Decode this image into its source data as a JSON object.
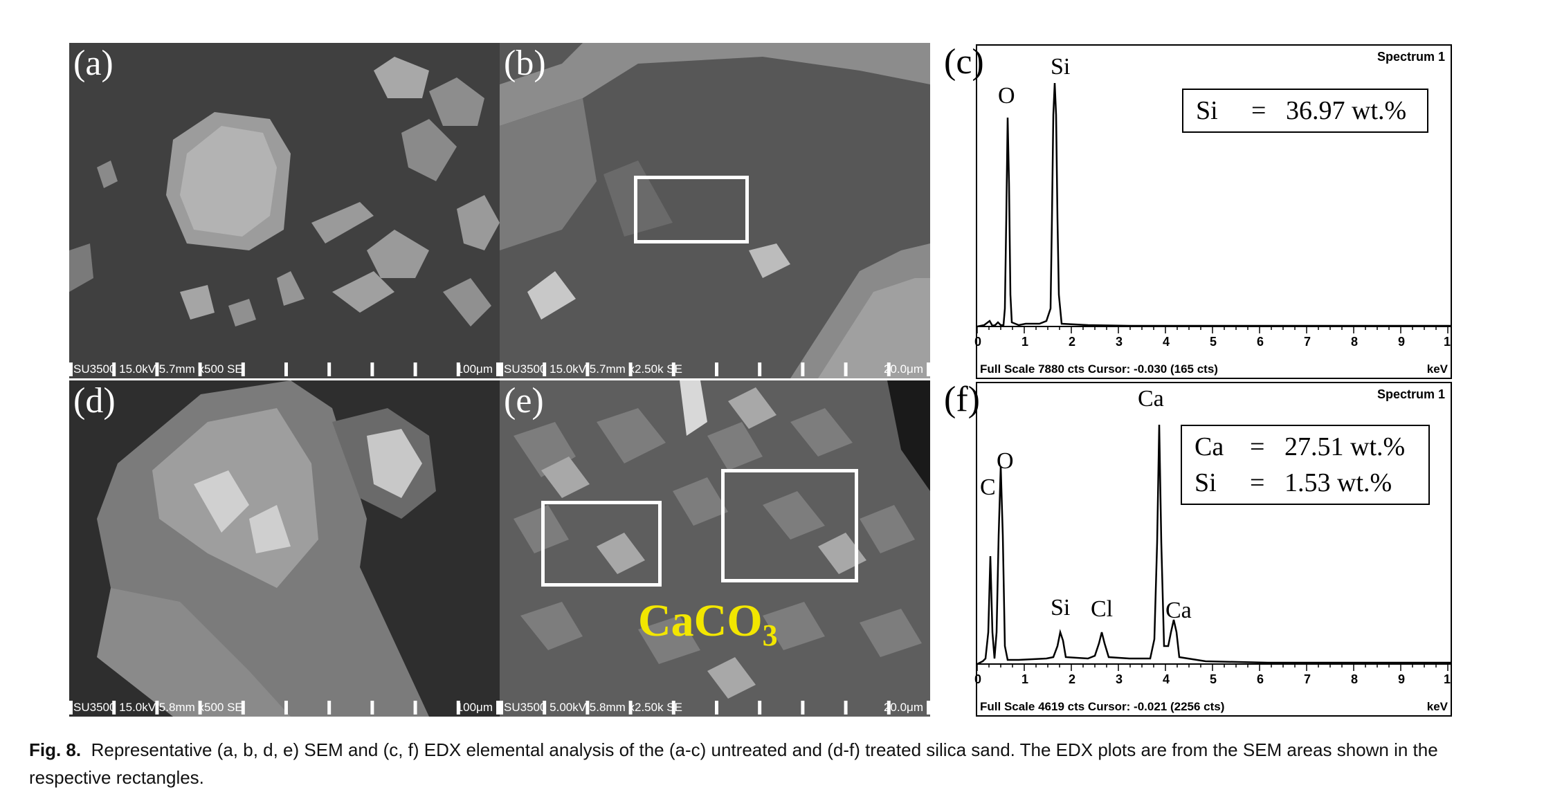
{
  "panels": {
    "a": {
      "label": "(a)",
      "info": "SU3500 15.0kV 5.7mm x500 SE",
      "scale": "100μm"
    },
    "b": {
      "label": "(b)",
      "info": "SU3500 15.0kV 5.7mm x2.50k SE",
      "scale": "20.0μm"
    },
    "d": {
      "label": "(d)",
      "info": "SU3500 15.0kV 5.8mm x500 SE",
      "scale": "100μm"
    },
    "e": {
      "label": "(e)",
      "info": "SU3500 5.00kV 5.8mm x2.50k SE",
      "scale": "20.0μm",
      "annotation": "CaCO",
      "annotation_sub": "3"
    }
  },
  "edx": {
    "c": {
      "label": "(c)",
      "spectrum": "Spectrum 1",
      "results": [
        {
          "element": "Si",
          "eq": "=",
          "value": "36.97 wt.%"
        }
      ],
      "peaks": [
        "O",
        "Si"
      ],
      "footer": "Full Scale 7880 cts Cursor: -0.030  (165 cts)",
      "unit": "keV"
    },
    "f": {
      "label": "(f)",
      "spectrum": "Spectrum 1",
      "results": [
        {
          "element": "Ca",
          "eq": "=",
          "value": "27.51 wt.%"
        },
        {
          "element": "Si",
          "eq": "=",
          "value": "1.53 wt.%"
        }
      ],
      "peaks": [
        "C",
        "O",
        "Si",
        "Cl",
        "Ca",
        "Ca"
      ],
      "footer": "Full Scale 4619 cts Cursor: -0.021  (2256 cts)",
      "unit": "keV"
    },
    "ticks": [
      "0",
      "1",
      "2",
      "3",
      "4",
      "5",
      "6",
      "7",
      "8",
      "9",
      "1"
    ]
  },
  "caption": {
    "fig": "Fig. 8.",
    "text": "Representative (a, b, d, e) SEM and (c, f) EDX elemental analysis of the (a-c) untreated and (d-f) treated silica sand. The EDX plots are from the SEM areas shown in the respective rectangles."
  }
}
